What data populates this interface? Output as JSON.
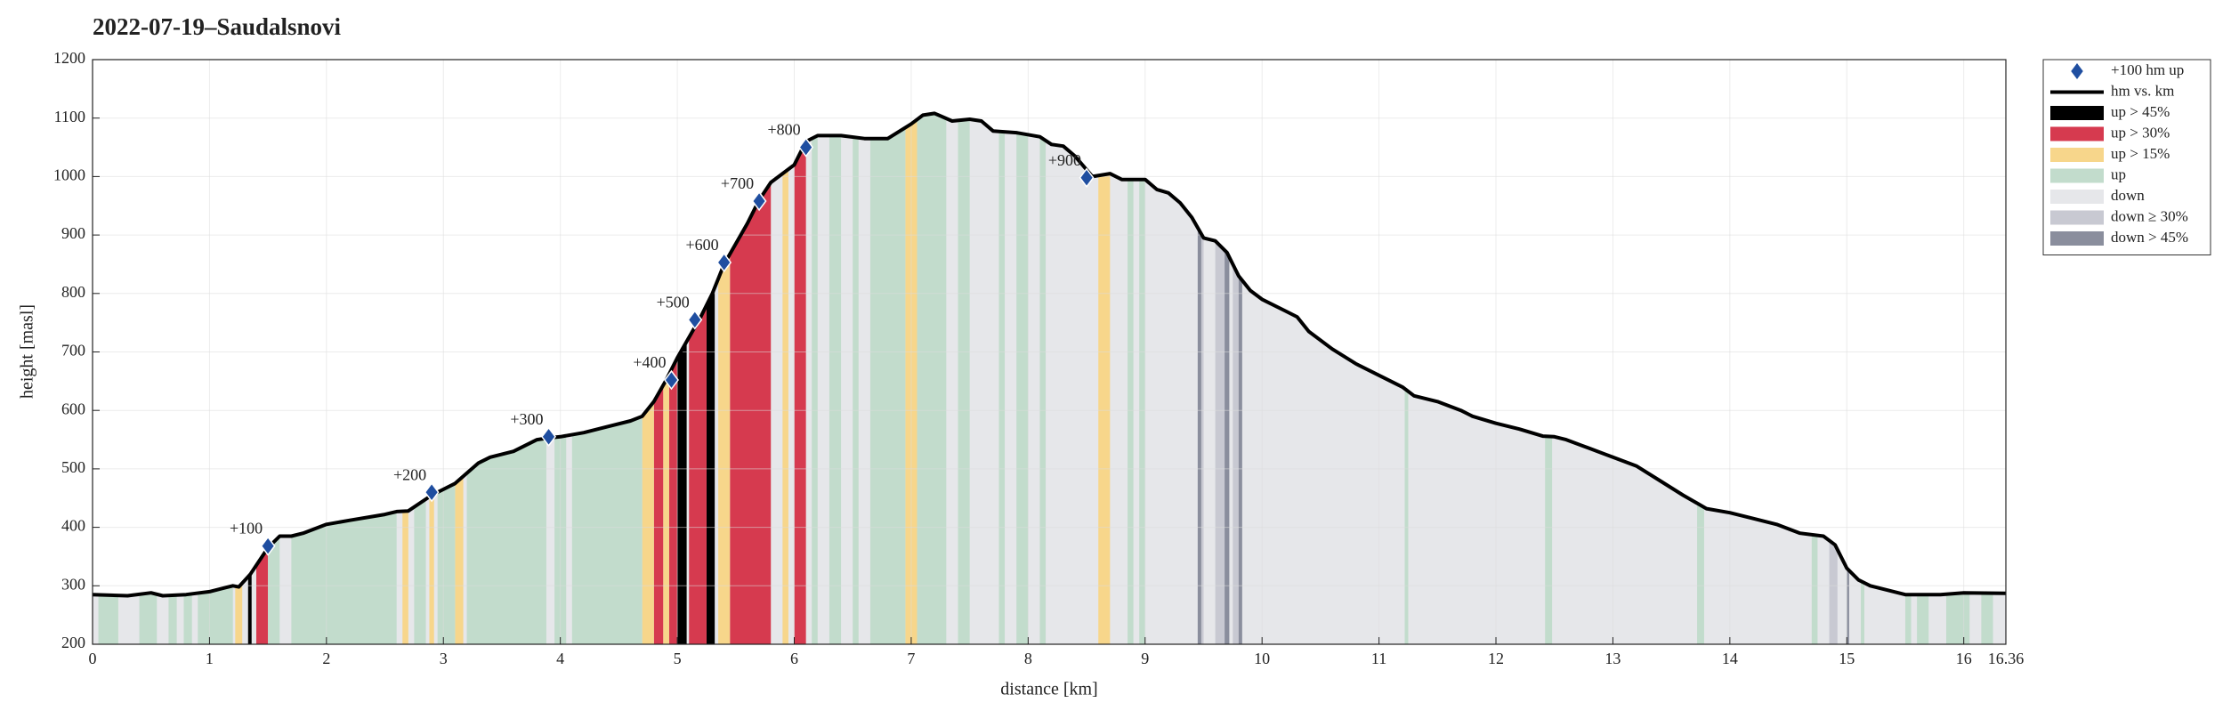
{
  "chart_data": {
    "type": "area",
    "title": "2022-07-19–Saudalsnovi",
    "xlabel": "distance [km]",
    "ylabel": "height [masl]",
    "xlim": [
      0,
      16.36
    ],
    "ylim": [
      200,
      1200
    ],
    "xticks": [
      0,
      1,
      2,
      3,
      4,
      5,
      6,
      7,
      8,
      9,
      10,
      11,
      12,
      13,
      14,
      15,
      16,
      16.36
    ],
    "yticks": [
      200,
      300,
      400,
      500,
      600,
      700,
      800,
      900,
      1000,
      1100,
      1200
    ],
    "grid": true,
    "legend": "outside-right",
    "markers": {
      "name": "+100 hm up",
      "color": "#1f4ea0",
      "x": [
        1.5,
        2.9,
        3.9,
        4.95,
        5.15,
        5.4,
        5.7,
        6.1,
        8.5
      ],
      "values": [
        368,
        460,
        555,
        652,
        755,
        853,
        958,
        1050,
        998
      ],
      "labels": [
        "+100",
        "+200",
        "+300",
        "+400",
        "+500",
        "+600",
        "+700",
        "+800",
        "+900"
      ]
    },
    "series": [
      {
        "name": "hm vs. km",
        "color": "#000000",
        "x": [
          0,
          0.3,
          0.5,
          0.6,
          0.8,
          1.0,
          1.2,
          1.25,
          1.35,
          1.5,
          1.6,
          1.7,
          1.8,
          2.0,
          2.2,
          2.5,
          2.6,
          2.7,
          2.9,
          3.1,
          3.3,
          3.4,
          3.6,
          3.8,
          3.9,
          4.0,
          4.2,
          4.4,
          4.6,
          4.7,
          4.8,
          4.9,
          5.0,
          5.2,
          5.3,
          5.4,
          5.6,
          5.7,
          5.8,
          6.0,
          6.1,
          6.2,
          6.4,
          6.6,
          6.8,
          7.0,
          7.1,
          7.2,
          7.35,
          7.5,
          7.6,
          7.7,
          7.9,
          8.1,
          8.2,
          8.3,
          8.4,
          8.55,
          8.7,
          8.8,
          9.0,
          9.1,
          9.2,
          9.3,
          9.4,
          9.5,
          9.6,
          9.7,
          9.8,
          9.9,
          10.0,
          10.2,
          10.3,
          10.4,
          10.6,
          10.8,
          11.0,
          11.2,
          11.3,
          11.5,
          11.7,
          11.8,
          12.0,
          12.2,
          12.4,
          12.5,
          12.6,
          12.8,
          13.0,
          13.2,
          13.4,
          13.6,
          13.8,
          14.0,
          14.2,
          14.4,
          14.6,
          14.8,
          14.9,
          15.0,
          15.1,
          15.2,
          15.5,
          15.8,
          16.0,
          16.36
        ],
        "values": [
          285,
          283,
          288,
          283,
          285,
          290,
          300,
          298,
          320,
          365,
          385,
          385,
          390,
          405,
          412,
          422,
          427,
          428,
          455,
          475,
          510,
          520,
          530,
          550,
          553,
          555,
          562,
          572,
          582,
          590,
          615,
          650,
          690,
          760,
          800,
          850,
          920,
          960,
          990,
          1020,
          1060,
          1070,
          1070,
          1065,
          1065,
          1090,
          1105,
          1108,
          1095,
          1098,
          1095,
          1078,
          1075,
          1068,
          1055,
          1052,
          1035,
          1000,
          1005,
          995,
          995,
          978,
          972,
          955,
          930,
          895,
          890,
          870,
          830,
          805,
          790,
          770,
          760,
          735,
          705,
          680,
          660,
          640,
          625,
          615,
          600,
          590,
          578,
          568,
          556,
          555,
          550,
          535,
          520,
          505,
          480,
          455,
          432,
          425,
          415,
          405,
          390,
          385,
          370,
          330,
          310,
          300,
          285,
          285,
          288,
          287
        ]
      }
    ],
    "bands": [
      {
        "name": "up > 45%",
        "color": "#000000",
        "ranges": [
          [
            1.33,
            1.36
          ],
          [
            5.0,
            5.08
          ],
          [
            5.25,
            5.32
          ]
        ]
      },
      {
        "name": "up > 30%",
        "color": "#d63a4f",
        "ranges": [
          [
            1.4,
            1.5
          ],
          [
            4.8,
            4.88
          ],
          [
            4.93,
            5.0
          ],
          [
            5.1,
            5.25
          ],
          [
            5.45,
            5.8
          ],
          [
            6.0,
            6.1
          ]
        ]
      },
      {
        "name": "up > 15%",
        "color": "#f7d68b",
        "ranges": [
          [
            1.22,
            1.28
          ],
          [
            2.65,
            2.7
          ],
          [
            2.88,
            2.92
          ],
          [
            3.1,
            3.17
          ],
          [
            4.7,
            4.8
          ],
          [
            4.88,
            4.93
          ],
          [
            5.35,
            5.45
          ],
          [
            5.9,
            5.95
          ],
          [
            6.95,
            7.05
          ],
          [
            8.6,
            8.7
          ]
        ]
      },
      {
        "name": "up",
        "color": "#c2dccc",
        "ranges": [
          [
            0.05,
            0.22
          ],
          [
            0.4,
            0.55
          ],
          [
            0.65,
            0.72
          ],
          [
            0.78,
            0.85
          ],
          [
            0.9,
            1.2
          ],
          [
            1.5,
            1.6
          ],
          [
            1.7,
            2.6
          ],
          [
            2.75,
            2.85
          ],
          [
            2.95,
            3.1
          ],
          [
            3.2,
            3.88
          ],
          [
            3.95,
            4.05
          ],
          [
            4.1,
            4.7
          ],
          [
            6.15,
            6.2
          ],
          [
            6.3,
            6.4
          ],
          [
            6.5,
            6.55
          ],
          [
            6.65,
            6.95
          ],
          [
            7.05,
            7.3
          ],
          [
            7.4,
            7.5
          ],
          [
            7.75,
            7.8
          ],
          [
            7.9,
            8.0
          ],
          [
            8.1,
            8.15
          ],
          [
            8.85,
            8.9
          ],
          [
            8.95,
            9.0
          ],
          [
            11.22,
            11.25
          ],
          [
            12.42,
            12.48
          ],
          [
            13.72,
            13.78
          ],
          [
            14.7,
            14.75
          ],
          [
            15.12,
            15.15
          ],
          [
            15.5,
            15.55
          ],
          [
            15.6,
            15.7
          ],
          [
            15.85,
            16.05
          ],
          [
            16.15,
            16.25
          ]
        ]
      },
      {
        "name": "down",
        "color": "#e6e7ea",
        "ranges": [
          [
            0,
            16.36
          ]
        ]
      },
      {
        "name": "down ≥ 30%",
        "color": "#c8c9d2",
        "ranges": [
          [
            9.45,
            9.5
          ],
          [
            9.6,
            9.7
          ],
          [
            9.75,
            9.82
          ],
          [
            14.85,
            14.92
          ]
        ]
      },
      {
        "name": "down > 45%",
        "color": "#8a8e9d",
        "ranges": [
          [
            9.45,
            9.48
          ],
          [
            9.68,
            9.72
          ],
          [
            9.8,
            9.83
          ],
          [
            15.0,
            15.02
          ]
        ]
      }
    ]
  }
}
